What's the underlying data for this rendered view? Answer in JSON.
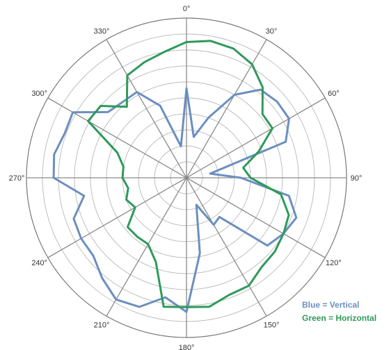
{
  "chart_data": {
    "type": "polar-line",
    "title": "",
    "angle_tick_labels": [
      "0°",
      "30°",
      "60°",
      "90°",
      "120°",
      "150°",
      "180°",
      "210°",
      "240°",
      "270°",
      "300°",
      "330°"
    ],
    "radial_rings": 10,
    "radial_max": 10,
    "grid": true,
    "legend_placement": "bottom-right",
    "legend": [
      {
        "label": "Blue = Vertical",
        "color": "#6b8fbf"
      },
      {
        "label": "Green = Horizontal",
        "color": "#2e9a5a"
      }
    ],
    "series": [
      {
        "name": "Vertical",
        "color": "#6b8fbf",
        "points": [
          [
            0,
            5.6
          ],
          [
            10,
            2.6
          ],
          [
            20,
            4.0
          ],
          [
            30,
            6.0
          ],
          [
            40,
            7.2
          ],
          [
            50,
            7.4
          ],
          [
            60,
            7.4
          ],
          [
            70,
            6.6
          ],
          [
            80,
            1.5
          ],
          [
            90,
            3.4
          ],
          [
            100,
            6.5
          ],
          [
            110,
            7.3
          ],
          [
            120,
            7.0
          ],
          [
            130,
            6.6
          ],
          [
            140,
            3.2
          ],
          [
            150,
            3.4
          ],
          [
            160,
            1.8
          ],
          [
            170,
            4.8
          ],
          [
            180,
            8.4
          ],
          [
            190,
            7.6
          ],
          [
            200,
            8.6
          ],
          [
            210,
            8.8
          ],
          [
            220,
            8.2
          ],
          [
            230,
            7.6
          ],
          [
            240,
            7.6
          ],
          [
            250,
            7.5
          ],
          [
            260,
            6.5
          ],
          [
            270,
            8.3
          ],
          [
            280,
            8.4
          ],
          [
            290,
            8.1
          ],
          [
            300,
            8.2
          ],
          [
            310,
            6.4
          ],
          [
            320,
            6.2
          ],
          [
            330,
            6.2
          ],
          [
            340,
            4.8
          ],
          [
            350,
            2.0
          ],
          [
            360,
            5.6
          ]
        ]
      },
      {
        "name": "Horizontal",
        "color": "#2e9a5a",
        "points": [
          [
            0,
            8.5
          ],
          [
            10,
            8.7
          ],
          [
            20,
            8.6
          ],
          [
            30,
            8.2
          ],
          [
            40,
            7.4
          ],
          [
            50,
            6.2
          ],
          [
            60,
            6.2
          ],
          [
            70,
            4.8
          ],
          [
            80,
            3.6
          ],
          [
            90,
            4.0
          ],
          [
            100,
            6.0
          ],
          [
            110,
            6.8
          ],
          [
            120,
            7.0
          ],
          [
            130,
            7.2
          ],
          [
            140,
            7.3
          ],
          [
            150,
            7.8
          ],
          [
            160,
            7.8
          ],
          [
            170,
            8.2
          ],
          [
            180,
            8.1
          ],
          [
            190,
            8.2
          ],
          [
            200,
            5.6
          ],
          [
            210,
            4.8
          ],
          [
            220,
            4.8
          ],
          [
            230,
            4.8
          ],
          [
            240,
            3.7
          ],
          [
            250,
            4.0
          ],
          [
            260,
            3.7
          ],
          [
            270,
            4.0
          ],
          [
            280,
            4.0
          ],
          [
            290,
            4.6
          ],
          [
            300,
            7.1
          ],
          [
            310,
            7.0
          ],
          [
            320,
            5.8
          ],
          [
            330,
            7.4
          ],
          [
            340,
            7.7
          ],
          [
            350,
            8.0
          ],
          [
            360,
            8.5
          ]
        ]
      }
    ]
  }
}
